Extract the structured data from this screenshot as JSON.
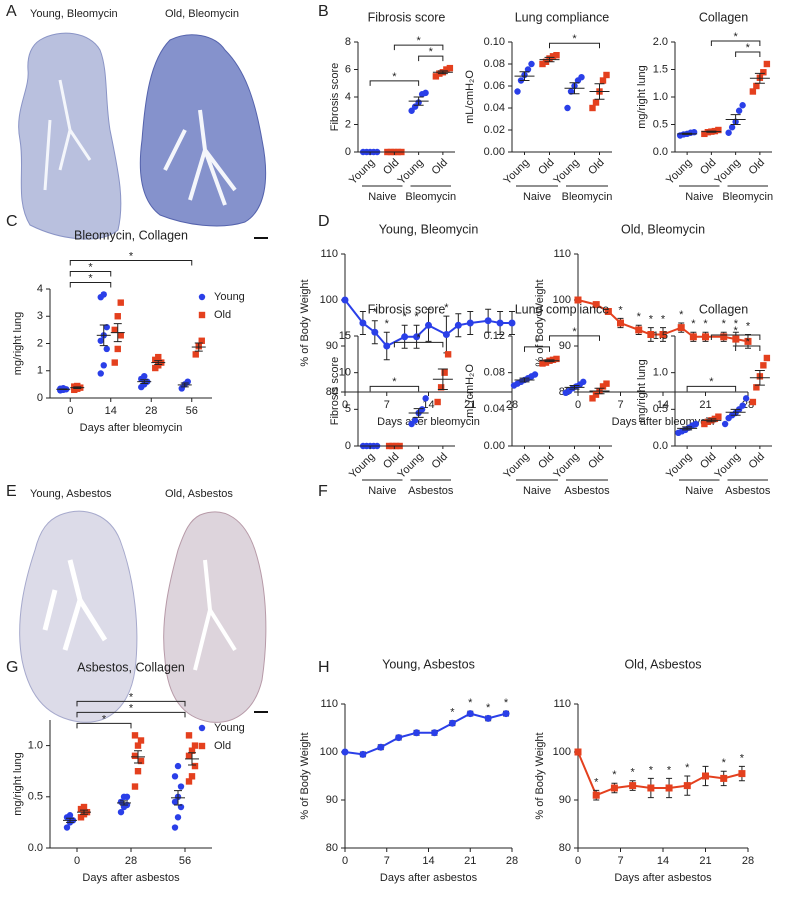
{
  "panel_letters": [
    "A",
    "B",
    "C",
    "D",
    "E",
    "F",
    "G",
    "H"
  ],
  "histology_labels": [
    "Young, Bleomycin",
    "Old, Bleomycin",
    "Young, Asbestos",
    "Old, Asbestos"
  ],
  "chart_data": [
    {
      "type": "dotplot",
      "title": "Fibrosis score",
      "y_label": "Fibrosis score",
      "ylim": [
        0,
        8
      ],
      "yticks": [
        0,
        2,
        4,
        6,
        8
      ],
      "categories": [
        "Young",
        "Old",
        "Young",
        "Old"
      ],
      "groups": [
        "Naive",
        "Bleomycin"
      ],
      "colors": [
        "#2a3fe8",
        "#e4401e",
        "#2a3fe8",
        "#e4401e"
      ],
      "markers": [
        "circle",
        "square",
        "circle",
        "square"
      ],
      "points": [
        [
          0,
          0,
          0,
          0,
          0
        ],
        [
          0,
          0,
          0,
          0,
          0
        ],
        [
          3.0,
          3.3,
          3.6,
          4.2,
          4.3
        ],
        [
          5.5,
          5.7,
          5.8,
          6.0,
          6.1
        ]
      ],
      "means": [
        0,
        0,
        3.7,
        5.8
      ],
      "sems": [
        0,
        0,
        0.3,
        0.1
      ],
      "significance": [
        {
          "pair": [
            2,
            3
          ],
          "label": "*"
        },
        {
          "pair": [
            1,
            3
          ],
          "label": "*"
        },
        {
          "pair": [
            0,
            2
          ],
          "label": "*"
        }
      ]
    },
    {
      "type": "dotplot",
      "title": "Lung compliance",
      "y_label": "mL/cmH₂O",
      "ylim": [
        0,
        0.1
      ],
      "yticks": [
        {
          "value": 0,
          "label": "0.00"
        },
        0.02,
        0.04,
        0.06,
        0.08,
        {
          "value": 0.1,
          "label": "0.10"
        }
      ],
      "categories": [
        "Young",
        "Old",
        "Young",
        "Old"
      ],
      "groups": [
        "Naive",
        "Bleomycin"
      ],
      "colors": [
        "#2a3fe8",
        "#e4401e",
        "#2a3fe8",
        "#e4401e"
      ],
      "markers": [
        "circle",
        "square",
        "circle",
        "square"
      ],
      "points": [
        [
          0.055,
          0.065,
          0.07,
          0.075,
          0.08
        ],
        [
          0.08,
          0.082,
          0.085,
          0.087,
          0.088
        ],
        [
          0.04,
          0.055,
          0.06,
          0.065,
          0.068
        ],
        [
          0.04,
          0.045,
          0.055,
          0.065,
          0.07
        ]
      ],
      "means": [
        0.069,
        0.084,
        0.058,
        0.055
      ],
      "sems": [
        0.004,
        0.002,
        0.005,
        0.007
      ],
      "significance": [
        {
          "pair": [
            1,
            3
          ],
          "label": "*"
        }
      ]
    },
    {
      "type": "dotplot",
      "title": "Collagen",
      "y_label": "mg/right lung",
      "ylim": [
        0,
        2
      ],
      "yticks": [
        {
          "value": 0,
          "label": "0.0"
        },
        0.5,
        {
          "value": 1,
          "label": "1.0"
        },
        1.5,
        {
          "value": 2,
          "label": "2.0"
        }
      ],
      "categories": [
        "Young",
        "Old",
        "Young",
        "Old"
      ],
      "groups": [
        "Naive",
        "Bleomycin"
      ],
      "colors": [
        "#2a3fe8",
        "#e4401e",
        "#2a3fe8",
        "#e4401e"
      ],
      "markers": [
        "circle",
        "square",
        "circle",
        "square"
      ],
      "points": [
        [
          0.3,
          0.32,
          0.33,
          0.35,
          0.36
        ],
        [
          0.33,
          0.36,
          0.37,
          0.38,
          0.4
        ],
        [
          0.35,
          0.45,
          0.55,
          0.75,
          0.85
        ],
        [
          1.1,
          1.2,
          1.35,
          1.45,
          1.6
        ]
      ],
      "means": [
        0.33,
        0.37,
        0.59,
        1.34
      ],
      "sems": [
        0.01,
        0.01,
        0.09,
        0.09
      ],
      "significance": [
        {
          "pair": [
            2,
            3
          ],
          "label": "*"
        },
        {
          "pair": [
            1,
            3
          ],
          "label": "*"
        }
      ]
    },
    {
      "type": "grouped_dotplot",
      "title": "Bleomycin, Collagen",
      "x_label": "Days after bleomycin",
      "y_label": "mg/right lung",
      "categories": [
        "0",
        "14",
        "28",
        "56"
      ],
      "ylim": [
        0,
        4
      ],
      "yticks": [
        0,
        1,
        2,
        3,
        4
      ],
      "series": [
        {
          "name": "Young",
          "color": "#2a3fe8",
          "marker": "circle",
          "points": [
            [
              0.28,
              0.3,
              0.32,
              0.34,
              0.36
            ],
            [
              0.9,
              1.2,
              1.8,
              2.1,
              2.3,
              2.6,
              3.7,
              3.8
            ],
            [
              0.4,
              0.5,
              0.6,
              0.7,
              0.8
            ],
            [
              0.35,
              0.5,
              0.6
            ]
          ],
          "means": [
            0.32,
            2.3,
            0.6,
            0.48
          ],
          "sems": [
            0.01,
            0.38,
            0.07,
            0.07
          ]
        },
        {
          "name": "Old",
          "color": "#e4401e",
          "marker": "square",
          "points": [
            [
              0.3,
              0.34,
              0.38,
              0.42,
              0.44
            ],
            [
              1.3,
              1.8,
              2.3,
              2.5,
              3.0,
              3.5
            ],
            [
              1.1,
              1.2,
              1.3,
              1.4,
              1.5
            ],
            [
              1.6,
              1.9,
              2.1
            ]
          ],
          "means": [
            0.38,
            2.4,
            1.3,
            1.87
          ],
          "sems": [
            0.03,
            0.33,
            0.07,
            0.15
          ]
        }
      ],
      "significance": [
        {
          "pair": [
            0,
            1
          ],
          "label": "*"
        },
        {
          "pair": [
            0,
            1
          ],
          "label": "*"
        },
        {
          "pair": [
            0,
            3
          ],
          "label": "*"
        }
      ]
    },
    {
      "type": "line",
      "title": "Young, Bleomycin",
      "x_label": "Days after bleomycin",
      "y_label": "% of Body Weight",
      "xlim": [
        0,
        28
      ],
      "xticks": [
        0,
        7,
        14,
        21,
        28
      ],
      "ylim": [
        80,
        110
      ],
      "yticks": [
        80,
        90,
        100,
        110
      ],
      "color": "#2a3fe8",
      "marker": "circle",
      "x": [
        0,
        3,
        5,
        7,
        10,
        12,
        14,
        17,
        19,
        21,
        24,
        26,
        28
      ],
      "values": [
        100,
        95,
        93,
        90,
        92,
        92,
        94.5,
        92.5,
        94.5,
        95,
        95.5,
        95,
        95
      ],
      "errors": [
        0,
        2.5,
        2.5,
        3,
        2.5,
        2.5,
        3.5,
        4,
        2.5,
        2.5,
        2.5,
        2.5,
        2.5
      ],
      "stars": {
        "x": [
          5,
          7,
          10,
          12,
          17
        ],
        "label": "*"
      }
    },
    {
      "type": "line",
      "title": "Old, Bleomycin",
      "x_label": "Days after bleomycin",
      "y_label": "% of Body Weight",
      "xlim": [
        0,
        28
      ],
      "xticks": [
        0,
        7,
        14,
        21,
        28
      ],
      "ylim": [
        80,
        110
      ],
      "yticks": [
        80,
        90,
        100,
        110
      ],
      "color": "#e4401e",
      "marker": "square",
      "x": [
        0,
        3,
        5,
        7,
        10,
        12,
        14,
        17,
        19,
        21,
        24,
        26,
        28
      ],
      "values": [
        100,
        99,
        97.5,
        95,
        93.5,
        92.5,
        92.5,
        94,
        92,
        92,
        92,
        91.5,
        91
      ],
      "errors": [
        0,
        0.5,
        0.5,
        1,
        1,
        1.5,
        1.5,
        1,
        1,
        1,
        1,
        1.5,
        1.5
      ],
      "stars": {
        "x": [
          7,
          10,
          12,
          14,
          17,
          19,
          21,
          24,
          26,
          28
        ],
        "label": "*"
      }
    },
    {
      "type": "dotplot",
      "title": "Fibrosis score",
      "y_label": "Fibrosis score",
      "ylim": [
        0,
        15
      ],
      "yticks": [
        0,
        5,
        10,
        15
      ],
      "categories": [
        "Young",
        "Old",
        "Young",
        "Old"
      ],
      "groups": [
        "Naive",
        "Asbestos"
      ],
      "colors": [
        "#2a3fe8",
        "#e4401e",
        "#2a3fe8",
        "#e4401e"
      ],
      "markers": [
        "circle",
        "square",
        "circle",
        "square"
      ],
      "points": [
        [
          0,
          0,
          0,
          0,
          0
        ],
        [
          0,
          0,
          0,
          0
        ],
        [
          3.0,
          3.5,
          4.5,
          5.0,
          6.5
        ],
        [
          6.0,
          8.0,
          10.0,
          12.5
        ]
      ],
      "means": [
        0,
        0,
        4.5,
        9.1
      ],
      "sems": [
        0,
        0,
        0.6,
        1.4
      ],
      "significance": [
        {
          "pair": [
            1,
            3
          ],
          "label": "*"
        },
        {
          "pair": [
            0,
            2
          ],
          "label": "*"
        }
      ]
    },
    {
      "type": "dotplot",
      "title": "Lung compliance",
      "y_label": "mL/cmH₂O",
      "ylim": [
        0,
        0.12
      ],
      "yticks": [
        {
          "value": 0,
          "label": "0.00"
        },
        0.04,
        0.08,
        0.12
      ],
      "categories": [
        "Young",
        "Old",
        "Young",
        "Old"
      ],
      "groups": [
        "Naive",
        "Asbestos"
      ],
      "colors": [
        "#2a3fe8",
        "#e4401e",
        "#2a3fe8",
        "#e4401e"
      ],
      "markers": [
        "circle",
        "square",
        "circle",
        "square"
      ],
      "points": [
        [
          0.066,
          0.068,
          0.07,
          0.072,
          0.074,
          0.076,
          0.078
        ],
        [
          0.09,
          0.091,
          0.093,
          0.094,
          0.095
        ],
        [
          0.058,
          0.06,
          0.063,
          0.065,
          0.067,
          0.07
        ],
        [
          0.052,
          0.056,
          0.06,
          0.065,
          0.068
        ]
      ],
      "means": [
        0.072,
        0.093,
        0.064,
        0.06
      ],
      "sems": [
        0.002,
        0.001,
        0.002,
        0.003
      ],
      "significance": [
        {
          "pair": [
            0,
            1
          ],
          "label": "*"
        },
        {
          "pair": [
            1,
            3
          ],
          "label": "*"
        }
      ]
    },
    {
      "type": "dotplot",
      "title": "Collagen",
      "y_label": "mg/right lung",
      "ylim": [
        0,
        1.5
      ],
      "yticks": [
        {
          "value": 0,
          "label": "0.0"
        },
        0.5,
        {
          "value": 1,
          "label": "1.0"
        },
        1.5
      ],
      "categories": [
        "Young",
        "Old",
        "Young",
        "Old"
      ],
      "groups": [
        "Naive",
        "Asbestos"
      ],
      "colors": [
        "#2a3fe8",
        "#e4401e",
        "#2a3fe8",
        "#e4401e"
      ],
      "markers": [
        "circle",
        "square",
        "circle",
        "square"
      ],
      "points": [
        [
          0.18,
          0.2,
          0.22,
          0.25,
          0.28,
          0.3
        ],
        [
          0.3,
          0.33,
          0.35,
          0.37,
          0.4
        ],
        [
          0.3,
          0.38,
          0.42,
          0.45,
          0.5,
          0.55,
          0.65
        ],
        [
          0.6,
          0.8,
          0.95,
          1.1,
          1.2
        ]
      ],
      "means": [
        0.24,
        0.35,
        0.46,
        0.93
      ],
      "sems": [
        0.02,
        0.02,
        0.04,
        0.1
      ],
      "significance": [
        {
          "pair": [
            2,
            3
          ],
          "label": "*"
        },
        {
          "pair": [
            1,
            3
          ],
          "label": "*"
        },
        {
          "pair": [
            0,
            2
          ],
          "label": "*"
        }
      ]
    },
    {
      "type": "grouped_dotplot",
      "title": "Asbestos, Collagen",
      "x_label": "Days after asbestos",
      "y_label": "mg/right lung",
      "categories": [
        "0",
        "28",
        "56"
      ],
      "ylim": [
        0,
        1.25
      ],
      "yticks": [
        {
          "value": 0,
          "label": "0.0"
        },
        0.5,
        {
          "value": 1,
          "label": "1.0"
        }
      ],
      "series": [
        {
          "name": "Young",
          "color": "#2a3fe8",
          "marker": "circle",
          "points": [
            [
              0.2,
              0.25,
              0.27,
              0.3,
              0.32
            ],
            [
              0.35,
              0.4,
              0.42,
              0.45,
              0.5,
              0.5
            ],
            [
              0.2,
              0.3,
              0.4,
              0.45,
              0.5,
              0.6,
              0.7,
              0.8
            ]
          ],
          "means": [
            0.27,
            0.44,
            0.49
          ],
          "sems": [
            0.02,
            0.02,
            0.07
          ]
        },
        {
          "name": "Old",
          "color": "#e4401e",
          "marker": "square",
          "points": [
            [
              0.3,
              0.33,
              0.35,
              0.38,
              0.4
            ],
            [
              0.6,
              0.75,
              0.85,
              0.9,
              1.0,
              1.05,
              1.1
            ],
            [
              0.65,
              0.7,
              0.8,
              0.9,
              0.95,
              1.0,
              1.1
            ]
          ],
          "means": [
            0.35,
            0.89,
            0.87
          ],
          "sems": [
            0.02,
            0.06,
            0.06
          ]
        }
      ],
      "significance": [
        {
          "pair": [
            0,
            1
          ],
          "label": "*"
        },
        {
          "pair": [
            0,
            2
          ],
          "label": "*"
        },
        {
          "pair": [
            0,
            2
          ],
          "label": "*"
        }
      ]
    },
    {
      "type": "line",
      "title": "Young, Asbestos",
      "x_label": "Days after asbestos",
      "y_label": "% of Body Weight",
      "xlim": [
        0,
        28
      ],
      "xticks": [
        0,
        7,
        14,
        21,
        28
      ],
      "ylim": [
        80,
        110
      ],
      "yticks": [
        80,
        90,
        100,
        110
      ],
      "color": "#2a3fe8",
      "marker": "circle",
      "x": [
        0,
        3,
        6,
        9,
        12,
        15,
        18,
        21,
        24,
        27
      ],
      "values": [
        100,
        99.5,
        101,
        103,
        104,
        104,
        106,
        108,
        107,
        108
      ],
      "errors": [
        0,
        0.5,
        0.5,
        0.5,
        0.5,
        0.5,
        0.5,
        0.5,
        0.5,
        0.5
      ],
      "stars": {
        "x": [
          18,
          21,
          24,
          27
        ],
        "label": "*"
      }
    },
    {
      "type": "line",
      "title": "Old, Asbestos",
      "x_label": "Days after asbestos",
      "y_label": "% of Body Weight",
      "xlim": [
        0,
        28
      ],
      "xticks": [
        0,
        7,
        14,
        21,
        28
      ],
      "ylim": [
        80,
        110
      ],
      "yticks": [
        80,
        90,
        100,
        110
      ],
      "color": "#e4401e",
      "marker": "square",
      "x": [
        0,
        3,
        6,
        9,
        12,
        15,
        18,
        21,
        24,
        27
      ],
      "values": [
        100,
        91,
        92.5,
        93,
        92.5,
        92.5,
        93,
        95,
        94.5,
        95.5
      ],
      "errors": [
        0,
        1,
        1,
        1,
        2,
        2,
        2,
        2,
        1.5,
        1.5
      ],
      "stars": {
        "x": [
          3,
          6,
          9,
          12,
          15,
          18,
          24,
          27
        ],
        "label": "*"
      }
    }
  ]
}
